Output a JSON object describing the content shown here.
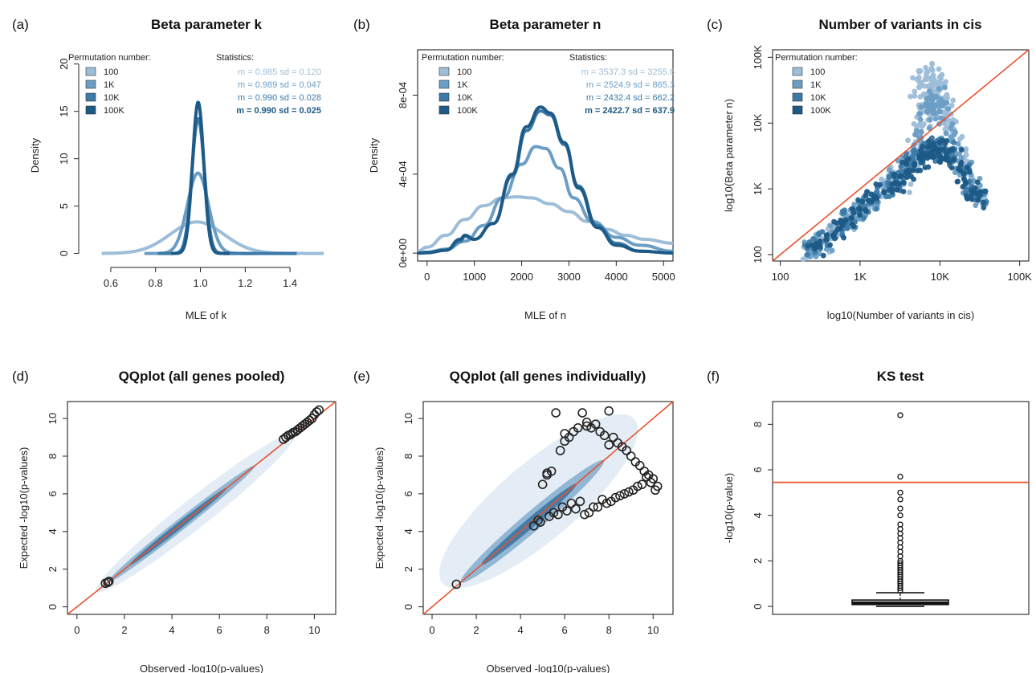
{
  "colors": {
    "p100": "#9dbdd8",
    "p1K": "#6c9ec5",
    "p10K": "#3c7aa8",
    "p100K": "#1d5a86",
    "ref_line": "#e8502f",
    "point_outline": "#222222"
  },
  "chart_data": [
    {
      "id": "a",
      "letter": "(a)",
      "type": "line",
      "title": "Beta parameter k",
      "xlabel": "MLE of k",
      "ylabel": "Density",
      "xlim": [
        0.5,
        1.55
      ],
      "ylim": [
        -0.8,
        21.5
      ],
      "xticks": [
        "0.6",
        "0.8",
        "1.0",
        "1.2",
        "1.4"
      ],
      "xtick_values": [
        0.6,
        0.8,
        1.0,
        1.2,
        1.4
      ],
      "yticks": [
        "0",
        "5",
        "10",
        "15",
        "20"
      ],
      "ytick_values": [
        0,
        5,
        10,
        15,
        20
      ],
      "legend_title": "Permutation number:",
      "stats_title": "Statistics:",
      "legend_position": "top-left",
      "legend": [
        "100",
        "1K",
        "10K",
        "100K"
      ],
      "stats": [
        "m = 0.985 sd = 0.120",
        "m = 0.989 sd = 0.047",
        "m = 0.990 sd = 0.028",
        "m = 0.990 sd = 0.025"
      ],
      "series": [
        {
          "name": "100",
          "mean": 0.985,
          "sd": 0.12,
          "xrange": [
            0.56,
            1.55
          ]
        },
        {
          "name": "1K",
          "mean": 0.989,
          "sd": 0.047,
          "xrange": [
            0.75,
            1.25
          ]
        },
        {
          "name": "10K",
          "mean": 0.99,
          "sd": 0.028,
          "xrange": [
            0.81,
            1.43
          ]
        },
        {
          "name": "100K",
          "mean": 0.99,
          "sd": 0.025,
          "xrange": [
            0.87,
            1.13
          ]
        }
      ]
    },
    {
      "id": "b",
      "letter": "(b)",
      "type": "line",
      "title": "Beta parameter n",
      "xlabel": "MLE of n",
      "ylabel": "Density",
      "xlim": [
        -200,
        5200
      ],
      "ylim": [
        -4e-05,
        0.00103
      ],
      "xticks": [
        "0",
        "1000",
        "2000",
        "3000",
        "4000",
        "5000"
      ],
      "xtick_values": [
        0,
        1000,
        2000,
        3000,
        4000,
        5000
      ],
      "yticks": [
        "0e+00",
        "4e-04",
        "8e-04"
      ],
      "ytick_values": [
        0,
        0.0004,
        0.0008
      ],
      "legend_title": "Permutation number:",
      "stats_title": "Statistics:",
      "legend_position": "top-left",
      "legend": [
        "100",
        "1K",
        "10K",
        "100K"
      ],
      "stats": [
        "m = 3537.3 sd = 3255.6",
        "m = 2524.9 sd = 865.3",
        "m = 2432.4 sd = 662.2",
        "m = 2422.7 sd = 637.9"
      ],
      "series": [
        {
          "name": "100",
          "x": [
            -200,
            0,
            400,
            800,
            1200,
            1600,
            1900,
            2200,
            2600,
            3000,
            3400,
            3800,
            4200,
            4600,
            5200
          ],
          "y": [
            1e-05,
            3e-05,
            9e-05,
            0.00017,
            0.00024,
            0.00028,
            0.000285,
            0.00028,
            0.00025,
            0.00021,
            0.00016,
            0.00012,
            9e-05,
            7e-05,
            5e-05
          ]
        },
        {
          "name": "1K",
          "x": [
            -200,
            0,
            400,
            800,
            1200,
            1600,
            2000,
            2300,
            2500,
            2800,
            3100,
            3500,
            4000,
            4500,
            5200
          ],
          "y": [
            0,
            5e-06,
            2e-05,
            6e-05,
            0.00014,
            0.00028,
            0.00045,
            0.00054,
            0.00053,
            0.00043,
            0.00028,
            0.00016,
            8e-05,
            4e-05,
            1e-05
          ]
        },
        {
          "name": "10K",
          "x": [
            -200,
            0,
            400,
            700,
            800,
            1000,
            1400,
            1800,
            2100,
            2400,
            2600,
            2900,
            3200,
            3600,
            4000,
            4500,
            5200
          ],
          "y": [
            0,
            2e-06,
            1.5e-05,
            6e-05,
            8.5e-05,
            7e-05,
            0.00015,
            0.00039,
            0.00062,
            0.00072,
            0.0007,
            0.00055,
            0.00034,
            0.00014,
            5e-05,
            1e-05,
            0
          ]
        },
        {
          "name": "100K",
          "x": [
            -200,
            0,
            400,
            700,
            800,
            1000,
            1400,
            1800,
            2100,
            2400,
            2600,
            2900,
            3200,
            3600,
            4000,
            4500,
            5200
          ],
          "y": [
            0,
            2e-06,
            1.5e-05,
            7e-05,
            9e-05,
            7e-05,
            0.00015,
            0.0004,
            0.00064,
            0.00074,
            0.00071,
            0.00056,
            0.00033,
            0.00013,
            4e-05,
            1e-05,
            0
          ]
        }
      ]
    },
    {
      "id": "c",
      "letter": "(c)",
      "type": "scatter",
      "title": "Number of variants in cis",
      "xlabel": "log10(Number of variants in cis)",
      "ylabel": "log10(Beta parameter n)",
      "scale": "log10",
      "xlim": [
        80,
        130000
      ],
      "ylim": [
        80,
        130000
      ],
      "xticks": [
        "100",
        "1K",
        "10K",
        "100K"
      ],
      "xtick_values": [
        100,
        1000,
        10000,
        100000
      ],
      "yticks": [
        "100",
        "1K",
        "10K",
        "100K"
      ],
      "ytick_values": [
        100,
        1000,
        10000,
        100000
      ],
      "legend_title": "Permutation number:",
      "legend_position": "top-left",
      "legend": [
        "100",
        "1K",
        "10K",
        "100K"
      ],
      "reference": "identity",
      "series": [
        {
          "name": "100",
          "x": [
            240,
            330,
            500,
            700,
            1000,
            1500,
            2200,
            3000,
            4000,
            5000,
            6000,
            7000,
            8000,
            9000,
            10000,
            12000,
            15000,
            20000,
            25000,
            30000,
            7000,
            8500,
            5500,
            9500,
            11000,
            4500,
            6500,
            3500
          ],
          "y": [
            110,
            150,
            230,
            330,
            450,
            650,
            1000,
            1600,
            2500,
            5000,
            9000,
            20000,
            30000,
            40000,
            50000,
            20000,
            8000,
            3000,
            1500,
            800,
            60000,
            45000,
            35000,
            25000,
            12000,
            3000,
            15000,
            1200
          ]
        },
        {
          "name": "1K",
          "x": [
            250,
            350,
            520,
            720,
            1000,
            1400,
            2000,
            2800,
            3800,
            4800,
            5800,
            7000,
            8000,
            9000,
            10000,
            12000,
            15000,
            20000,
            25000,
            30000
          ],
          "y": [
            120,
            160,
            240,
            340,
            470,
            660,
            950,
            1400,
            2200,
            3500,
            6000,
            15000,
            22000,
            25000,
            15000,
            7000,
            4000,
            2000,
            1100,
            700
          ]
        },
        {
          "name": "10K",
          "x": [
            260,
            370,
            540,
            750,
            1000,
            1400,
            2000,
            2800,
            3800,
            4800,
            5800,
            7000,
            8000,
            9000,
            10000,
            12000,
            15000,
            20000,
            25000,
            30000
          ],
          "y": [
            125,
            165,
            245,
            350,
            480,
            660,
            900,
            1300,
            1900,
            2500,
            3100,
            3600,
            4000,
            4300,
            4200,
            3600,
            3000,
            1800,
            1000,
            700
          ]
        },
        {
          "name": "100K",
          "x": [
            270,
            380,
            560,
            780,
            1000,
            1400,
            2000,
            2800,
            3800,
            4800,
            5800,
            7000,
            8000,
            9000,
            10000,
            12000,
            15000,
            20000,
            25000,
            30000
          ],
          "y": [
            130,
            170,
            250,
            360,
            490,
            650,
            880,
            1250,
            1800,
            2300,
            2900,
            3300,
            3700,
            4000,
            3900,
            3400,
            2800,
            1700,
            950,
            680
          ]
        }
      ]
    },
    {
      "id": "d",
      "letter": "(d)",
      "type": "scatter",
      "title": "QQplot (all genes pooled)",
      "xlabel": "Observed -log10(p-values)",
      "ylabel": "Expected -log10(p-values)",
      "xlim": [
        -0.4,
        10.9
      ],
      "ylim": [
        -0.4,
        10.9
      ],
      "xticks": [
        "0",
        "2",
        "4",
        "6",
        "8",
        "10"
      ],
      "xtick_values": [
        0,
        2,
        4,
        6,
        8,
        10
      ],
      "yticks": [
        "0",
        "2",
        "4",
        "6",
        "8",
        "10"
      ],
      "ytick_values": [
        0,
        2,
        4,
        6,
        8,
        10
      ],
      "reference": "identity",
      "density_band": {
        "from": 1.3,
        "to": 8.7
      },
      "outliers": {
        "x": [
          1.2,
          1.3,
          1.35,
          8.7,
          8.8,
          8.9,
          9.0,
          9.1,
          9.2,
          9.3,
          9.4,
          9.5,
          9.6,
          9.7,
          9.8,
          9.9,
          10.0,
          10.1,
          10.2
        ],
        "y": [
          1.25,
          1.3,
          1.35,
          8.9,
          9.0,
          9.1,
          9.15,
          9.25,
          9.3,
          9.4,
          9.5,
          9.6,
          9.7,
          9.8,
          9.9,
          10.0,
          10.2,
          10.35,
          10.45
        ]
      }
    },
    {
      "id": "e",
      "letter": "(e)",
      "type": "scatter",
      "title": "QQplot (all genes individually)",
      "xlabel": "Observed -log10(p-values)",
      "ylabel": "Expected -log10(p-values)",
      "xlim": [
        -0.4,
        10.9
      ],
      "ylim": [
        -0.4,
        10.9
      ],
      "xticks": [
        "0",
        "2",
        "4",
        "6",
        "8",
        "10"
      ],
      "xtick_values": [
        0,
        2,
        4,
        6,
        8,
        10
      ],
      "yticks": [
        "0",
        "2",
        "4",
        "6",
        "8",
        "10"
      ],
      "ytick_values": [
        0,
        2,
        4,
        6,
        8,
        10
      ],
      "reference": "identity",
      "density_band": {
        "from": 1.3,
        "to": 9.0
      },
      "outliers": {
        "x": [
          1.1,
          4.6,
          4.8,
          5.0,
          5.2,
          5.4,
          5.6,
          5.8,
          6.0,
          6.2,
          6.4,
          6.6,
          6.8,
          7.0,
          7.2,
          7.4,
          7.6,
          7.8,
          8.0,
          8.2,
          8.4,
          8.6,
          8.8,
          9.0,
          9.2,
          9.4,
          9.6,
          9.8,
          10.0,
          10.2,
          5.5,
          5.9,
          6.3,
          6.7,
          7.1,
          7.5,
          7.9,
          8.3,
          8.7,
          9.1,
          9.5,
          9.9,
          4.9,
          5.3,
          5.7,
          6.1,
          6.5,
          6.9,
          7.3,
          7.7,
          8.1,
          8.5,
          8.9,
          9.3,
          9.7,
          10.1,
          5.2,
          6.0,
          7.0,
          8.0
        ],
        "y": [
          1.2,
          4.3,
          4.6,
          6.5,
          7.0,
          7.2,
          10.3,
          8.3,
          8.8,
          9.0,
          9.3,
          9.5,
          10.3,
          9.6,
          9.5,
          9.7,
          9.3,
          9.1,
          10.4,
          9.0,
          8.7,
          8.5,
          8.3,
          8.0,
          7.7,
          7.5,
          7.2,
          7.0,
          6.8,
          6.4,
          5.0,
          5.3,
          5.5,
          5.6,
          5.0,
          5.3,
          5.5,
          5.8,
          6.0,
          6.2,
          6.5,
          6.6,
          4.5,
          4.8,
          4.9,
          5.1,
          5.2,
          4.9,
          5.3,
          5.7,
          5.6,
          5.9,
          6.1,
          6.4,
          6.9,
          6.2,
          7.1,
          9.2,
          9.8,
          8.6
        ]
      }
    },
    {
      "id": "f",
      "letter": "(f)",
      "type": "box",
      "title": "KS test",
      "ylabel": "-log10(p-value)",
      "ylim": [
        -0.35,
        9.0
      ],
      "yticks": [
        "0",
        "2",
        "4",
        "6",
        "8"
      ],
      "ytick_values": [
        0,
        2,
        4,
        6,
        8
      ],
      "threshold": 5.45,
      "box": {
        "min": 0.0,
        "q1": 0.08,
        "median": 0.15,
        "q3": 0.28,
        "whisker_high": 0.6
      },
      "outliers": [
        0.7,
        0.8,
        0.9,
        1.0,
        1.1,
        1.2,
        1.3,
        1.4,
        1.5,
        1.6,
        1.7,
        1.8,
        1.9,
        2.0,
        2.2,
        2.4,
        2.6,
        2.8,
        3.0,
        3.2,
        3.4,
        3.6,
        4.0,
        4.3,
        4.7,
        5.0,
        5.7,
        8.4
      ]
    }
  ]
}
